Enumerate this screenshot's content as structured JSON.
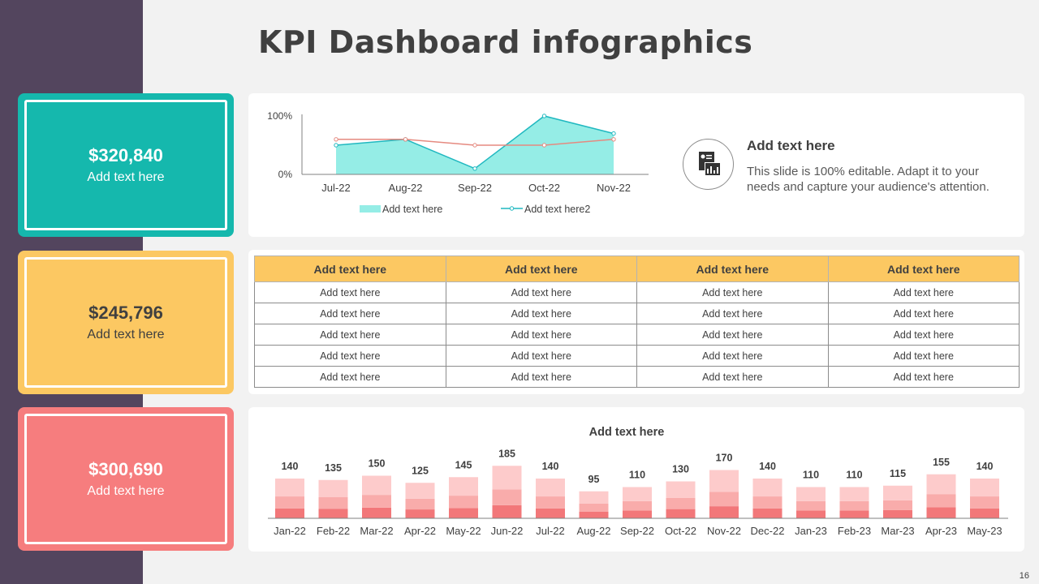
{
  "title": "KPI Dashboard infographics",
  "page_number": "16",
  "colors": {
    "sidebar": "#53455e",
    "teal": "#15b8ad",
    "yellow": "#fcc862",
    "coral": "#f67d7e"
  },
  "kpis": [
    {
      "value": "$320,840",
      "label": "Add text here"
    },
    {
      "value": "$245,796",
      "label": "Add text here"
    },
    {
      "value": "$300,690",
      "label": "Add text here"
    }
  ],
  "info": {
    "icon": "report-chart-icon",
    "title": "Add text here",
    "body": "This slide is 100% editable. Adapt it to your needs and capture your audience's attention."
  },
  "table": {
    "headers": [
      "Add text here",
      "Add text here",
      "Add text here",
      "Add text here"
    ],
    "rows": [
      [
        "Add text here",
        "Add text here",
        "Add text here",
        "Add text here"
      ],
      [
        "Add text here",
        "Add text here",
        "Add text here",
        "Add text here"
      ],
      [
        "Add text here",
        "Add text here",
        "Add text here",
        "Add text here"
      ],
      [
        "Add text here",
        "Add text here",
        "Add text here",
        "Add text here"
      ],
      [
        "Add text here",
        "Add text here",
        "Add text here",
        "Add text here"
      ]
    ]
  },
  "chart_data": [
    {
      "type": "line",
      "title": "",
      "categories": [
        "Jul-22",
        "Aug-22",
        "Sep-22",
        "Oct-22",
        "Nov-22"
      ],
      "y_tick_labels": [
        "100%",
        "0%"
      ],
      "ylim": [
        0,
        1
      ],
      "series": [
        {
          "name": "Add text here",
          "kind": "area",
          "values": [
            0.5,
            0.6,
            0.1,
            1.0,
            0.7
          ]
        },
        {
          "name": "Add text here2",
          "kind": "line",
          "values": [
            0.6,
            0.6,
            0.5,
            0.5,
            0.6
          ]
        }
      ],
      "legend": "bottom"
    },
    {
      "type": "bar",
      "title": "Add text here",
      "categories": [
        "Jan-22",
        "Feb-22",
        "Mar-22",
        "Apr-22",
        "May-22",
        "Jun-22",
        "Jul-22",
        "Aug-22",
        "Sep-22",
        "Oct-22",
        "Nov-22",
        "Dec-22",
        "Jan-23",
        "Feb-23",
        "Mar-23",
        "Apr-23",
        "May-23"
      ],
      "values": [
        140,
        135,
        150,
        125,
        145,
        185,
        140,
        95,
        110,
        130,
        170,
        140,
        110,
        110,
        115,
        155,
        140
      ],
      "ylim": [
        0,
        200
      ],
      "stacked_segments": 3
    }
  ]
}
